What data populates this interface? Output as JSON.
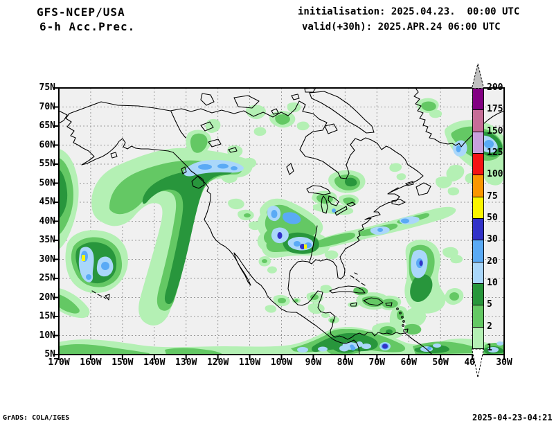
{
  "header": {
    "model": "GFS-NCEP/USA",
    "product": "6-h Acc.Prec.",
    "init_line": "initialisation: 2025.04.23.  00:00 UTC",
    "valid_line": "valid(+30h): 2025.APR.24 06:00 UTC"
  },
  "footer": {
    "credit": "GrADS: COLA/IGES",
    "timestamp": "2025-04-23-04:21"
  },
  "map": {
    "lat_ticks": [
      "75N",
      "70N",
      "65N",
      "60N",
      "55N",
      "50N",
      "45N",
      "40N",
      "35N",
      "30N",
      "25N",
      "20N",
      "15N",
      "10N",
      "5N"
    ],
    "lon_ticks": [
      "170W",
      "160W",
      "150W",
      "140W",
      "130W",
      "120W",
      "110W",
      "100W",
      "90W",
      "80W",
      "70W",
      "60W",
      "50W",
      "40W",
      "30W"
    ]
  },
  "colorbar": {
    "levels": [
      "200",
      "175",
      "150",
      "125",
      "100",
      "75",
      "50",
      "30",
      "20",
      "10",
      "5",
      "2",
      "1"
    ],
    "segments": [
      {
        "range": "175-200",
        "color": "#820082"
      },
      {
        "range": "150-175",
        "color": "#C76D98"
      },
      {
        "range": "125-150",
        "color": "#C8A0DC"
      },
      {
        "range": "100-125",
        "color": "#F51414"
      },
      {
        "range": "75-100",
        "color": "#FA9600"
      },
      {
        "range": "50-75",
        "color": "#FAF500"
      },
      {
        "range": "30-50",
        "color": "#3232C8"
      },
      {
        "range": "20-30",
        "color": "#5AAAF5"
      },
      {
        "range": "10-20",
        "color": "#AAD7FA"
      },
      {
        "range": "5-10",
        "color": "#28963C"
      },
      {
        "range": "2-5",
        "color": "#64C864"
      },
      {
        "range": "1-2",
        "color": "#B4F0B4"
      }
    ],
    "palette": {
      "g1": "#B4F0B4",
      "g2": "#64C864",
      "g3": "#28963C",
      "b1": "#AAD7FA",
      "b2": "#5AAAF5",
      "b3": "#3232C8",
      "y": "#FAF500",
      "o": "#FA9600",
      "r": "#F51414",
      "l": "#C8A0DC",
      "m": "#C76D98",
      "p": "#820082",
      "over": "#C0C0C0",
      "under": "#FFFFFF"
    }
  },
  "chart_data": {
    "type": "heatmap",
    "title": "GFS-NCEP/USA 6-h Acc.Prec.",
    "initialisation": "2025.04.23. 00:00 UTC",
    "valid": "+30h 2025.APR.24 06:00 UTC",
    "x_axis": {
      "ticks": [
        "170W",
        "160W",
        "150W",
        "140W",
        "130W",
        "120W",
        "110W",
        "100W",
        "90W",
        "80W",
        "70W",
        "60W",
        "50W",
        "40W",
        "30W"
      ],
      "range": [
        -170,
        -30
      ]
    },
    "y_axis": {
      "ticks": [
        "75N",
        "70N",
        "65N",
        "60N",
        "55N",
        "50N",
        "45N",
        "40N",
        "35N",
        "30N",
        "25N",
        "20N",
        "15N",
        "10N",
        "5N"
      ],
      "range": [
        5,
        75
      ]
    },
    "grid": {
      "lat_step_deg": 5,
      "lon_step_deg": 10,
      "style": "gray dashed"
    },
    "legend_levels": [
      1,
      2,
      5,
      10,
      20,
      30,
      50,
      75,
      100,
      125,
      150,
      175,
      200
    ],
    "legend_colors": [
      "#B4F0B4",
      "#64C864",
      "#28963C",
      "#AAD7FA",
      "#5AAAF5",
      "#3232C8",
      "#FAF500",
      "#FA9600",
      "#F51414",
      "#C8A0DC",
      "#C76D98",
      "#820082"
    ],
    "features": [
      {
        "name": "Gulf of Alaska comma-shaped band",
        "approx_location": "135-155W 45-58N",
        "peak_band": "20-30"
      },
      {
        "name": "BC panhandle coastal core",
        "approx_location": "128-140W 55-58N",
        "peak_band": "20-30"
      },
      {
        "name": "North Pacific low north of Hawaii",
        "approx_location": "152-163W 23-33N",
        "peak_band": "50-75"
      },
      {
        "name": "Texas / Gulf Coast storm cluster",
        "approx_location": "92-103W 28-36N",
        "peak_band": "50-75"
      },
      {
        "name": "Southeast US to open Atlantic band",
        "approx_location": "55-85W 30-40N",
        "peak_band": "30-50"
      },
      {
        "name": "Subtropical Atlantic system",
        "approx_location": "53-60W 22-34N",
        "peak_band": "30-50"
      },
      {
        "name": "South of Greenland system",
        "approx_location": "34-48W 48-58N",
        "peak_band": "30-50"
      },
      {
        "name": "Panama / Colombia convection",
        "approx_location": "70-83W 5-11N",
        "peak_band": "30-50"
      },
      {
        "name": "ITCZ band along southern edge",
        "approx_location": "30-170W 5-9N",
        "peak_band": "20-30"
      },
      {
        "name": "West-edge Pacific band",
        "approx_location": "168-170W 28-60N",
        "peak_band": "5-10"
      }
    ]
  }
}
